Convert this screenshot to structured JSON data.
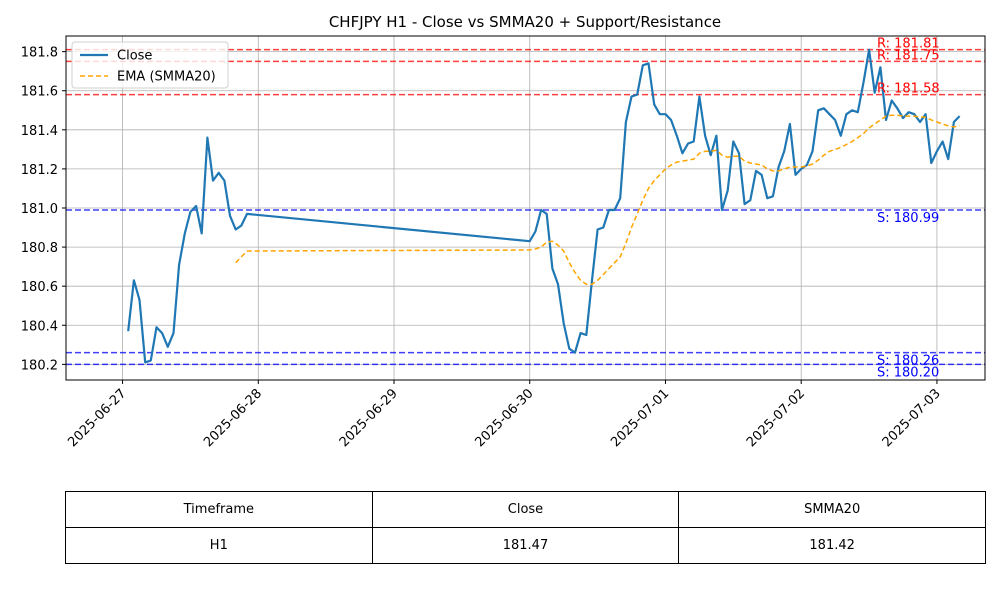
{
  "colors": {
    "close": "#1f77b4",
    "smma": "#ffa500",
    "resistance": "#ff0000",
    "support": "#0000ff",
    "grid": "#b0b0b0"
  },
  "chart_data": {
    "type": "line",
    "title": "CHFJPY H1 - Close vs SMMA20 + Support/Resistance",
    "xlabel": "",
    "ylabel": "",
    "x_ticks": [
      "2025-06-27",
      "2025-06-28",
      "2025-06-29",
      "2025-06-30",
      "2025-07-01",
      "2025-07-02",
      "2025-07-03"
    ],
    "y_ticks": [
      "180.2",
      "180.4",
      "180.6",
      "180.8",
      "181.0",
      "181.2",
      "181.4",
      "181.6",
      "181.8"
    ],
    "ylim": [
      180.12,
      181.88
    ],
    "xlim": [
      "2025-06-26 14:00",
      "2025-07-03 08:30"
    ],
    "grid": true,
    "legend_position": "upper-left",
    "series": [
      {
        "name": "Close",
        "style": "solid",
        "points": [
          [
            "2025-06-27 01:00",
            180.37
          ],
          [
            "2025-06-27 02:00",
            180.63
          ],
          [
            "2025-06-27 03:00",
            180.53
          ],
          [
            "2025-06-27 04:00",
            180.21
          ],
          [
            "2025-06-27 05:00",
            180.22
          ],
          [
            "2025-06-27 06:00",
            180.39
          ],
          [
            "2025-06-27 07:00",
            180.36
          ],
          [
            "2025-06-27 08:00",
            180.29
          ],
          [
            "2025-06-27 09:00",
            180.36
          ],
          [
            "2025-06-27 10:00",
            180.71
          ],
          [
            "2025-06-27 11:00",
            180.87
          ],
          [
            "2025-06-27 12:00",
            180.98
          ],
          [
            "2025-06-27 13:00",
            181.01
          ],
          [
            "2025-06-27 14:00",
            180.87
          ],
          [
            "2025-06-27 15:00",
            181.36
          ],
          [
            "2025-06-27 16:00",
            181.14
          ],
          [
            "2025-06-27 17:00",
            181.18
          ],
          [
            "2025-06-27 18:00",
            181.14
          ],
          [
            "2025-06-27 19:00",
            180.96
          ],
          [
            "2025-06-27 20:00",
            180.89
          ],
          [
            "2025-06-27 21:00",
            180.91
          ],
          [
            "2025-06-27 22:00",
            180.97
          ],
          [
            "2025-06-30 00:00",
            180.83
          ],
          [
            "2025-06-30 01:00",
            180.88
          ],
          [
            "2025-06-30 02:00",
            180.99
          ],
          [
            "2025-06-30 03:00",
            180.97
          ],
          [
            "2025-06-30 04:00",
            180.69
          ],
          [
            "2025-06-30 05:00",
            180.61
          ],
          [
            "2025-06-30 06:00",
            180.41
          ],
          [
            "2025-06-30 07:00",
            180.28
          ],
          [
            "2025-06-30 08:00",
            180.26
          ],
          [
            "2025-06-30 09:00",
            180.36
          ],
          [
            "2025-06-30 10:00",
            180.35
          ],
          [
            "2025-06-30 11:00",
            180.63
          ],
          [
            "2025-06-30 12:00",
            180.89
          ],
          [
            "2025-06-30 13:00",
            180.9
          ],
          [
            "2025-06-30 14:00",
            180.99
          ],
          [
            "2025-06-30 15:00",
            180.99
          ],
          [
            "2025-06-30 16:00",
            181.05
          ],
          [
            "2025-06-30 17:00",
            181.44
          ],
          [
            "2025-06-30 18:00",
            181.57
          ],
          [
            "2025-06-30 19:00",
            181.58
          ],
          [
            "2025-06-30 20:00",
            181.73
          ],
          [
            "2025-06-30 21:00",
            181.74
          ],
          [
            "2025-06-30 22:00",
            181.53
          ],
          [
            "2025-06-30 23:00",
            181.48
          ],
          [
            "2025-07-01 00:00",
            181.48
          ],
          [
            "2025-07-01 01:00",
            181.45
          ],
          [
            "2025-07-01 02:00",
            181.37
          ],
          [
            "2025-07-01 03:00",
            181.28
          ],
          [
            "2025-07-01 04:00",
            181.33
          ],
          [
            "2025-07-01 05:00",
            181.34
          ],
          [
            "2025-07-01 06:00",
            181.57
          ],
          [
            "2025-07-01 07:00",
            181.37
          ],
          [
            "2025-07-01 08:00",
            181.27
          ],
          [
            "2025-07-01 09:00",
            181.37
          ],
          [
            "2025-07-01 10:00",
            180.99
          ],
          [
            "2025-07-01 11:00",
            181.09
          ],
          [
            "2025-07-01 12:00",
            181.34
          ],
          [
            "2025-07-01 13:00",
            181.28
          ],
          [
            "2025-07-01 14:00",
            181.02
          ],
          [
            "2025-07-01 15:00",
            181.04
          ],
          [
            "2025-07-01 16:00",
            181.19
          ],
          [
            "2025-07-01 17:00",
            181.17
          ],
          [
            "2025-07-01 18:00",
            181.05
          ],
          [
            "2025-07-01 19:00",
            181.06
          ],
          [
            "2025-07-01 20:00",
            181.21
          ],
          [
            "2025-07-01 21:00",
            181.29
          ],
          [
            "2025-07-01 22:00",
            181.43
          ],
          [
            "2025-07-01 23:00",
            181.17
          ],
          [
            "2025-07-02 00:00",
            181.2
          ],
          [
            "2025-07-02 01:00",
            181.22
          ],
          [
            "2025-07-02 02:00",
            181.29
          ],
          [
            "2025-07-02 03:00",
            181.5
          ],
          [
            "2025-07-02 04:00",
            181.51
          ],
          [
            "2025-07-02 05:00",
            181.48
          ],
          [
            "2025-07-02 06:00",
            181.45
          ],
          [
            "2025-07-02 07:00",
            181.37
          ],
          [
            "2025-07-02 08:00",
            181.48
          ],
          [
            "2025-07-02 09:00",
            181.5
          ],
          [
            "2025-07-02 10:00",
            181.49
          ],
          [
            "2025-07-02 11:00",
            181.64
          ],
          [
            "2025-07-02 12:00",
            181.81
          ],
          [
            "2025-07-02 13:00",
            181.59
          ],
          [
            "2025-07-02 14:00",
            181.72
          ],
          [
            "2025-07-02 15:00",
            181.45
          ],
          [
            "2025-07-02 16:00",
            181.55
          ],
          [
            "2025-07-02 17:00",
            181.51
          ],
          [
            "2025-07-02 18:00",
            181.46
          ],
          [
            "2025-07-02 19:00",
            181.49
          ],
          [
            "2025-07-02 20:00",
            181.48
          ],
          [
            "2025-07-02 21:00",
            181.44
          ],
          [
            "2025-07-02 22:00",
            181.48
          ],
          [
            "2025-07-02 23:00",
            181.23
          ],
          [
            "2025-07-03 00:00",
            181.29
          ],
          [
            "2025-07-03 01:00",
            181.34
          ],
          [
            "2025-07-03 02:00",
            181.25
          ],
          [
            "2025-07-03 03:00",
            181.44
          ],
          [
            "2025-07-03 04:00",
            181.47
          ]
        ]
      },
      {
        "name": "EMA (SMMA20)",
        "style": "dashed",
        "points": [
          [
            "2025-06-27 20:00",
            180.72
          ],
          [
            "2025-06-27 21:00",
            180.75
          ],
          [
            "2025-06-27 22:00",
            180.78
          ],
          [
            "2025-06-30 00:00",
            180.785
          ],
          [
            "2025-06-30 01:00",
            180.79
          ],
          [
            "2025-06-30 02:00",
            180.8
          ],
          [
            "2025-06-30 03:00",
            180.825
          ],
          [
            "2025-06-30 04:00",
            180.83
          ],
          [
            "2025-06-30 05:00",
            180.81
          ],
          [
            "2025-06-30 06:00",
            180.78
          ],
          [
            "2025-06-30 07:00",
            180.72
          ],
          [
            "2025-06-30 08:00",
            180.67
          ],
          [
            "2025-06-30 09:00",
            180.63
          ],
          [
            "2025-06-30 10:00",
            180.61
          ],
          [
            "2025-06-30 11:00",
            180.61
          ],
          [
            "2025-06-30 12:00",
            180.63
          ],
          [
            "2025-06-30 13:00",
            180.66
          ],
          [
            "2025-06-30 14:00",
            180.69
          ],
          [
            "2025-06-30 15:00",
            180.72
          ],
          [
            "2025-06-30 16:00",
            180.75
          ],
          [
            "2025-06-30 17:00",
            180.82
          ],
          [
            "2025-06-30 18:00",
            180.9
          ],
          [
            "2025-06-30 19:00",
            180.97
          ],
          [
            "2025-06-30 20:00",
            181.04
          ],
          [
            "2025-06-30 21:00",
            181.1
          ],
          [
            "2025-06-30 22:00",
            181.14
          ],
          [
            "2025-06-30 23:00",
            181.17
          ],
          [
            "2025-07-01 00:00",
            181.2
          ],
          [
            "2025-07-01 01:00",
            181.22
          ],
          [
            "2025-07-01 02:00",
            181.235
          ],
          [
            "2025-07-01 03:00",
            181.24
          ],
          [
            "2025-07-01 04:00",
            181.245
          ],
          [
            "2025-07-01 05:00",
            181.25
          ],
          [
            "2025-07-01 06:00",
            181.28
          ],
          [
            "2025-07-01 07:00",
            181.29
          ],
          [
            "2025-07-01 08:00",
            181.29
          ],
          [
            "2025-07-01 09:00",
            181.295
          ],
          [
            "2025-07-01 10:00",
            181.27
          ],
          [
            "2025-07-01 11:00",
            181.26
          ],
          [
            "2025-07-01 12:00",
            181.265
          ],
          [
            "2025-07-01 13:00",
            181.265
          ],
          [
            "2025-07-01 14:00",
            181.24
          ],
          [
            "2025-07-01 15:00",
            181.23
          ],
          [
            "2025-07-01 16:00",
            181.225
          ],
          [
            "2025-07-01 17:00",
            181.22
          ],
          [
            "2025-07-01 18:00",
            181.2
          ],
          [
            "2025-07-01 19:00",
            181.19
          ],
          [
            "2025-07-01 20:00",
            181.19
          ],
          [
            "2025-07-01 21:00",
            181.2
          ],
          [
            "2025-07-01 22:00",
            181.21
          ],
          [
            "2025-07-01 23:00",
            181.21
          ],
          [
            "2025-07-02 00:00",
            181.21
          ],
          [
            "2025-07-02 01:00",
            181.215
          ],
          [
            "2025-07-02 02:00",
            181.225
          ],
          [
            "2025-07-02 03:00",
            181.245
          ],
          [
            "2025-07-02 04:00",
            181.27
          ],
          [
            "2025-07-02 05:00",
            181.29
          ],
          [
            "2025-07-02 06:00",
            181.3
          ],
          [
            "2025-07-02 07:00",
            181.31
          ],
          [
            "2025-07-02 08:00",
            181.325
          ],
          [
            "2025-07-02 09:00",
            181.34
          ],
          [
            "2025-07-02 10:00",
            181.36
          ],
          [
            "2025-07-02 11:00",
            181.38
          ],
          [
            "2025-07-02 12:00",
            181.41
          ],
          [
            "2025-07-02 13:00",
            181.43
          ],
          [
            "2025-07-02 14:00",
            181.45
          ],
          [
            "2025-07-02 15:00",
            181.47
          ],
          [
            "2025-07-02 16:00",
            181.475
          ],
          [
            "2025-07-02 17:00",
            181.475
          ],
          [
            "2025-07-02 18:00",
            181.47
          ],
          [
            "2025-07-02 19:00",
            181.47
          ],
          [
            "2025-07-02 20:00",
            181.47
          ],
          [
            "2025-07-02 21:00",
            181.465
          ],
          [
            "2025-07-02 22:00",
            181.465
          ],
          [
            "2025-07-02 23:00",
            181.45
          ],
          [
            "2025-07-03 00:00",
            181.44
          ],
          [
            "2025-07-03 01:00",
            181.43
          ],
          [
            "2025-07-03 02:00",
            181.42
          ],
          [
            "2025-07-03 03:00",
            181.415
          ],
          [
            "2025-07-03 04:00",
            181.42
          ]
        ]
      }
    ],
    "levels": [
      {
        "kind": "resistance",
        "value": 181.81,
        "label": "R: 181.81"
      },
      {
        "kind": "resistance",
        "value": 181.75,
        "label": "R: 181.75"
      },
      {
        "kind": "resistance",
        "value": 181.58,
        "label": "R: 181.58"
      },
      {
        "kind": "support",
        "value": 180.99,
        "label": "S: 180.99"
      },
      {
        "kind": "support",
        "value": 180.26,
        "label": "S: 180.26"
      },
      {
        "kind": "support",
        "value": 180.2,
        "label": "S: 180.20"
      }
    ]
  },
  "table": {
    "headers": [
      "Timeframe",
      "Close",
      "SMMA20"
    ],
    "row": [
      "H1",
      "181.47",
      "181.42"
    ]
  }
}
